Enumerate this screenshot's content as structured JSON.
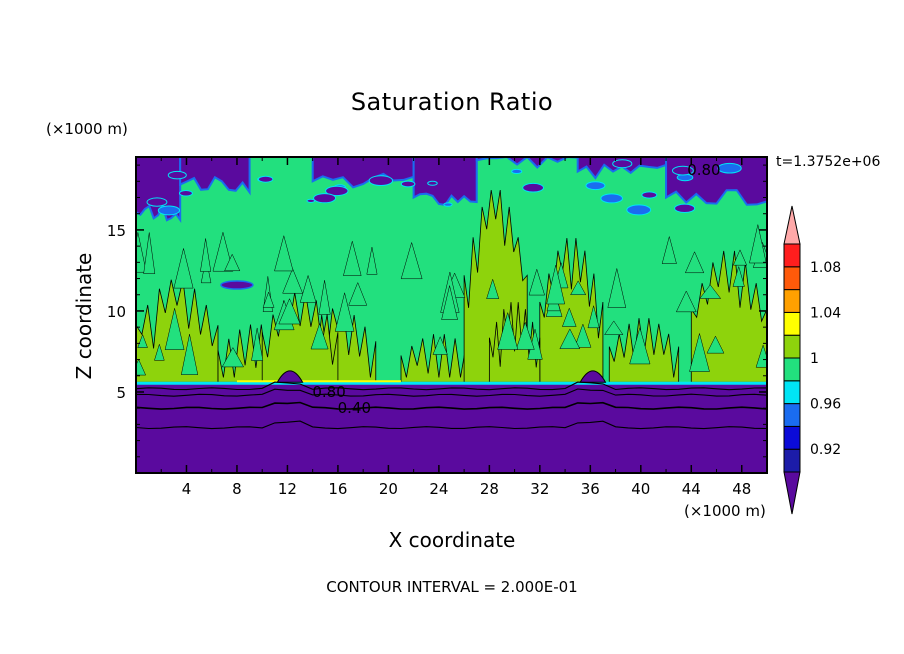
{
  "chart_data": {
    "type": "heatmap",
    "title": "Saturation Ratio",
    "xlabel": "X coordinate",
    "ylabel": "Z coordinate",
    "x_unit": "(×1000 m)",
    "y_unit": "(×1000 m)",
    "time_label": "t=1.3752e+06",
    "footer": "CONTOUR INTERVAL = 2.000E-01",
    "xlim": [
      0,
      50
    ],
    "ylim": [
      0,
      19.5
    ],
    "x_ticks": [
      4,
      8,
      12,
      16,
      20,
      24,
      28,
      32,
      36,
      40,
      44,
      48
    ],
    "y_ticks": [
      5,
      10,
      15
    ],
    "colorbar": {
      "levels": [
        0.9,
        0.92,
        0.94,
        0.96,
        0.98,
        1.0,
        1.02,
        1.04,
        1.06,
        1.08,
        1.1
      ],
      "labels": [
        "0.92",
        "0.96",
        "1",
        "1.04",
        "1.08"
      ],
      "label_values": [
        0.92,
        0.96,
        1.0,
        1.04,
        1.08
      ],
      "colors": [
        "#5a0a9e",
        "#1c1ca8",
        "#0b0bd8",
        "#1a6cf0",
        "#00e5f5",
        "#22e07e",
        "#8ed30c",
        "#ffff00",
        "#ffa000",
        "#ff5a0a",
        "#ff1e1e",
        "#ffa9a9"
      ]
    },
    "contour_labels": [
      {
        "text": "0.80",
        "x": 15.3,
        "y": 5.0
      },
      {
        "text": "0.40",
        "x": 17.3,
        "y": 4.0
      },
      {
        "text": "0.80",
        "x": 45.0,
        "y": 18.7
      }
    ],
    "regions": {
      "lower_dry_layer_top_km": 5.6,
      "upper_dry_layer_bottom_km": 16.5,
      "contour_lines_km": [
        5.2,
        4.8,
        4.0,
        2.8
      ]
    }
  }
}
